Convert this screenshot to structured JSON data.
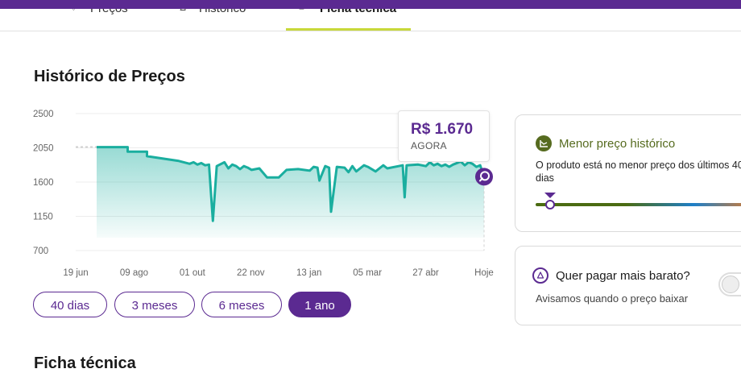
{
  "tabs": [
    {
      "label": "Preços",
      "icon": "heart-icon"
    },
    {
      "label": "Histórico",
      "icon": "chart-icon"
    },
    {
      "label": "Ficha técnica",
      "icon": "list-icon",
      "active": true
    }
  ],
  "section_title": "Histórico de Preços",
  "tooltip": {
    "price": "R$ 1.670",
    "when": "AGORA"
  },
  "period_buttons": [
    {
      "label": "40 dias",
      "active": false
    },
    {
      "label": "3 meses",
      "active": false
    },
    {
      "label": "6 meses",
      "active": false
    },
    {
      "label": "1 ano",
      "active": true
    }
  ],
  "card_lowest": {
    "title": "Menor preço histórico",
    "description": "O produto está no menor preço dos últimos 40 dias"
  },
  "card_alert": {
    "title": "Quer pagar mais barato?",
    "description": "Avisamos quando o preço baixar"
  },
  "next_section_title": "Ficha técnica",
  "colors": {
    "brand": "#5b2a91",
    "line": "#1aae9f",
    "accent": "#c8d83a",
    "green": "#566b1f"
  },
  "chart_data": {
    "type": "area",
    "title": "",
    "xlabel": "",
    "ylabel": "",
    "ylim": [
      700,
      2500
    ],
    "yticks": [
      "2500",
      "2050",
      "1600",
      "1150",
      "700"
    ],
    "x_tick_labels": [
      "19 jun",
      "09 ago",
      "01 out",
      "22 nov",
      "13 jan",
      "05 mar",
      "27 abr",
      "Hoje"
    ],
    "grid": true,
    "series": [
      {
        "values": [
          [
            0.0,
            2060
          ],
          [
            0.08,
            2060
          ],
          [
            0.08,
            2000
          ],
          [
            0.13,
            2000
          ],
          [
            0.13,
            1940
          ],
          [
            0.21,
            1880
          ],
          [
            0.24,
            1840
          ],
          [
            0.25,
            1860
          ],
          [
            0.26,
            1830
          ],
          [
            0.27,
            1850
          ],
          [
            0.28,
            1820
          ],
          [
            0.29,
            1830
          ],
          [
            0.3,
            1090
          ],
          [
            0.31,
            1810
          ],
          [
            0.33,
            1860
          ],
          [
            0.34,
            1780
          ],
          [
            0.35,
            1830
          ],
          [
            0.36,
            1810
          ],
          [
            0.37,
            1770
          ],
          [
            0.38,
            1810
          ],
          [
            0.39,
            1790
          ],
          [
            0.4,
            1760
          ],
          [
            0.42,
            1780
          ],
          [
            0.44,
            1660
          ],
          [
            0.47,
            1660
          ],
          [
            0.49,
            1760
          ],
          [
            0.52,
            1770
          ],
          [
            0.55,
            1750
          ],
          [
            0.56,
            1800
          ],
          [
            0.57,
            1790
          ],
          [
            0.575,
            1620
          ],
          [
            0.59,
            1810
          ],
          [
            0.6,
            1790
          ],
          [
            0.605,
            1210
          ],
          [
            0.62,
            1800
          ],
          [
            0.64,
            1790
          ],
          [
            0.65,
            1730
          ],
          [
            0.66,
            1810
          ],
          [
            0.67,
            1740
          ],
          [
            0.69,
            1820
          ],
          [
            0.7,
            1800
          ],
          [
            0.72,
            1740
          ],
          [
            0.74,
            1820
          ],
          [
            0.75,
            1780
          ],
          [
            0.79,
            1820
          ],
          [
            0.795,
            1400
          ],
          [
            0.8,
            1820
          ],
          [
            0.83,
            1830
          ],
          [
            0.85,
            1810
          ],
          [
            0.86,
            1860
          ],
          [
            0.87,
            1820
          ],
          [
            0.88,
            1840
          ],
          [
            0.89,
            1810
          ],
          [
            0.9,
            1830
          ],
          [
            0.91,
            1800
          ],
          [
            0.92,
            1830
          ],
          [
            0.94,
            1870
          ],
          [
            0.95,
            1820
          ],
          [
            0.96,
            1860
          ],
          [
            0.97,
            1840
          ],
          [
            0.98,
            1800
          ],
          [
            0.99,
            1820
          ],
          [
            1.0,
            1670
          ]
        ]
      }
    ]
  }
}
